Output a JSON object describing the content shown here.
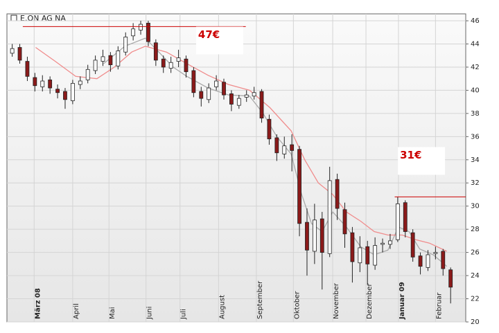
{
  "chart_data": {
    "type": "candlestick",
    "title": "E.ON AG NA",
    "xlim": [
      -0.7,
      60
    ],
    "ylim": [
      20,
      46.6
    ],
    "yticks": [
      20,
      22,
      24,
      26,
      28,
      30,
      32,
      34,
      36,
      38,
      40,
      42,
      44,
      46
    ],
    "xticks": [
      {
        "value": 2.9,
        "label": "März 08"
      },
      {
        "value": 8.0,
        "label": "April"
      },
      {
        "value": 12.8,
        "label": "Mai"
      },
      {
        "value": 17.7,
        "label": "Juni"
      },
      {
        "value": 22.2,
        "label": "Juli"
      },
      {
        "value": 27.3,
        "label": "August"
      },
      {
        "value": 32.3,
        "label": "September"
      },
      {
        "value": 37.2,
        "label": "Oktober"
      },
      {
        "value": 42.4,
        "label": "November"
      },
      {
        "value": 46.8,
        "label": "Dezember"
      },
      {
        "value": 51.1,
        "label": "Januar 09"
      },
      {
        "value": 56.0,
        "label": "Februar"
      }
    ],
    "grid": true,
    "up_color": "#ffffff",
    "down_color": "#8b1a1a",
    "candles": {
      "open": [
        43.2,
        43.7,
        42.5,
        41.1,
        40.3,
        40.9,
        40.1,
        39.9,
        39.1,
        40.5,
        40.9,
        41.7,
        42.5,
        43.0,
        42.1,
        43.3,
        44.7,
        45.2,
        45.8,
        44.1,
        42.7,
        41.9,
        42.5,
        42.7,
        41.7,
        39.9,
        39.2,
        40.3,
        40.7,
        39.7,
        38.7,
        39.4,
        39.5,
        39.9,
        37.5,
        35.9,
        34.5,
        35.3,
        34.9,
        28.6,
        26.1,
        28.9,
        25.9,
        32.3,
        29.7,
        27.7,
        25.1,
        26.5,
        24.9,
        26.7,
        26.7,
        27.1,
        30.3,
        27.7,
        25.7,
        24.7,
        25.9,
        26.1,
        24.5
      ],
      "high": [
        44.0,
        44.0,
        42.9,
        41.5,
        41.3,
        41.2,
        40.5,
        40.2,
        40.9,
        41.2,
        42.2,
        43.0,
        43.5,
        43.3,
        43.8,
        45.0,
        45.8,
        46.0,
        46.0,
        44.4,
        43.0,
        42.9,
        43.5,
        43.0,
        42.0,
        40.3,
        40.6,
        41.3,
        41.0,
        40.0,
        39.6,
        40.0,
        40.3,
        40.1,
        37.9,
        36.2,
        36.0,
        36.2,
        35.2,
        29.8,
        30.2,
        29.5,
        33.4,
        32.8,
        30.3,
        28.2,
        27.4,
        27.0,
        27.3,
        27.2,
        27.6,
        30.8,
        30.5,
        28.0,
        26.0,
        26.2,
        26.5,
        26.3,
        24.7
      ],
      "low": [
        42.9,
        42.3,
        40.8,
        39.9,
        39.9,
        39.7,
        39.3,
        38.4,
        38.8,
        40.1,
        40.6,
        41.4,
        42.1,
        41.6,
        41.8,
        43.0,
        44.3,
        44.8,
        43.8,
        42.1,
        41.5,
        41.5,
        42.0,
        41.1,
        39.4,
        38.6,
        38.9,
        40.0,
        39.2,
        38.2,
        38.4,
        39.0,
        39.2,
        37.2,
        35.3,
        33.9,
        34.1,
        33.0,
        27.4,
        24.0,
        25.0,
        22.8,
        25.6,
        28.8,
        26.4,
        23.4,
        24.3,
        23.2,
        24.5,
        26.0,
        26.3,
        26.9,
        27.3,
        25.2,
        24.1,
        24.4,
        25.4,
        24.0,
        21.6
      ],
      "close": [
        43.6,
        42.6,
        41.2,
        40.4,
        40.8,
        40.2,
        39.8,
        39.2,
        40.6,
        40.8,
        41.8,
        42.6,
        42.9,
        42.2,
        43.4,
        44.6,
        45.3,
        45.7,
        44.2,
        42.6,
        42.0,
        42.4,
        42.8,
        41.6,
        39.8,
        39.3,
        40.2,
        40.8,
        39.6,
        38.8,
        39.3,
        39.6,
        39.8,
        37.6,
        35.8,
        34.6,
        35.2,
        34.8,
        28.5,
        26.2,
        28.8,
        26.0,
        32.2,
        29.8,
        27.6,
        25.2,
        26.4,
        25.0,
        26.6,
        26.8,
        27.0,
        30.2,
        27.8,
        25.6,
        24.8,
        25.8,
        26.0,
        24.6,
        23.0
      ]
    },
    "series": [
      {
        "color": "#aaaaaa",
        "x": [
          12.1,
          14.9,
          17.6,
          19.4,
          21.3,
          23.1,
          25.9,
          28.6,
          31.4,
          33.2,
          35.0,
          36.9,
          38.3,
          39.6,
          41.0,
          42.4,
          44.2,
          46.1,
          47.9,
          49.7,
          51.1,
          52.5,
          53.9,
          55.7,
          57.5
        ],
        "values": [
          42.3,
          43.8,
          44.5,
          43.3,
          42.0,
          41.2,
          40.2,
          39.6,
          39.5,
          38.0,
          36.0,
          34.5,
          31.0,
          28.5,
          27.8,
          29.5,
          28.2,
          26.5,
          25.8,
          26.2,
          28.2,
          27.8,
          26.3,
          25.8,
          24.8
        ]
      },
      {
        "color": "#f08c8c",
        "x": [
          3.1,
          5.7,
          8.4,
          11.2,
          13.5,
          15.8,
          17.6,
          20.4,
          23.1,
          25.9,
          28.6,
          31.4,
          34.1,
          36.9,
          38.7,
          40.5,
          42.4,
          44.2,
          46.1,
          47.9,
          49.7,
          51.6,
          53.4,
          55.2,
          57.5
        ],
        "values": [
          43.7,
          42.5,
          41.2,
          41.0,
          42.0,
          43.3,
          43.8,
          43.3,
          42.3,
          41.3,
          40.5,
          40.0,
          38.5,
          36.5,
          34.0,
          32.0,
          31.0,
          29.5,
          28.7,
          27.8,
          27.5,
          27.5,
          27.1,
          26.8,
          26.1
        ]
      }
    ],
    "reference_lines": [
      {
        "y": 45.5,
        "x": [
          1.4,
          30.9
        ],
        "color": "#cc0000"
      },
      {
        "y": 30.8,
        "x": [
          50.6,
          60
        ],
        "color": "#cc0000"
      }
    ],
    "annotations": [
      {
        "text": "47€",
        "x": 24.6,
        "y": 44.3
      },
      {
        "text": "31€",
        "x": 51.3,
        "y": 33.9
      }
    ]
  }
}
